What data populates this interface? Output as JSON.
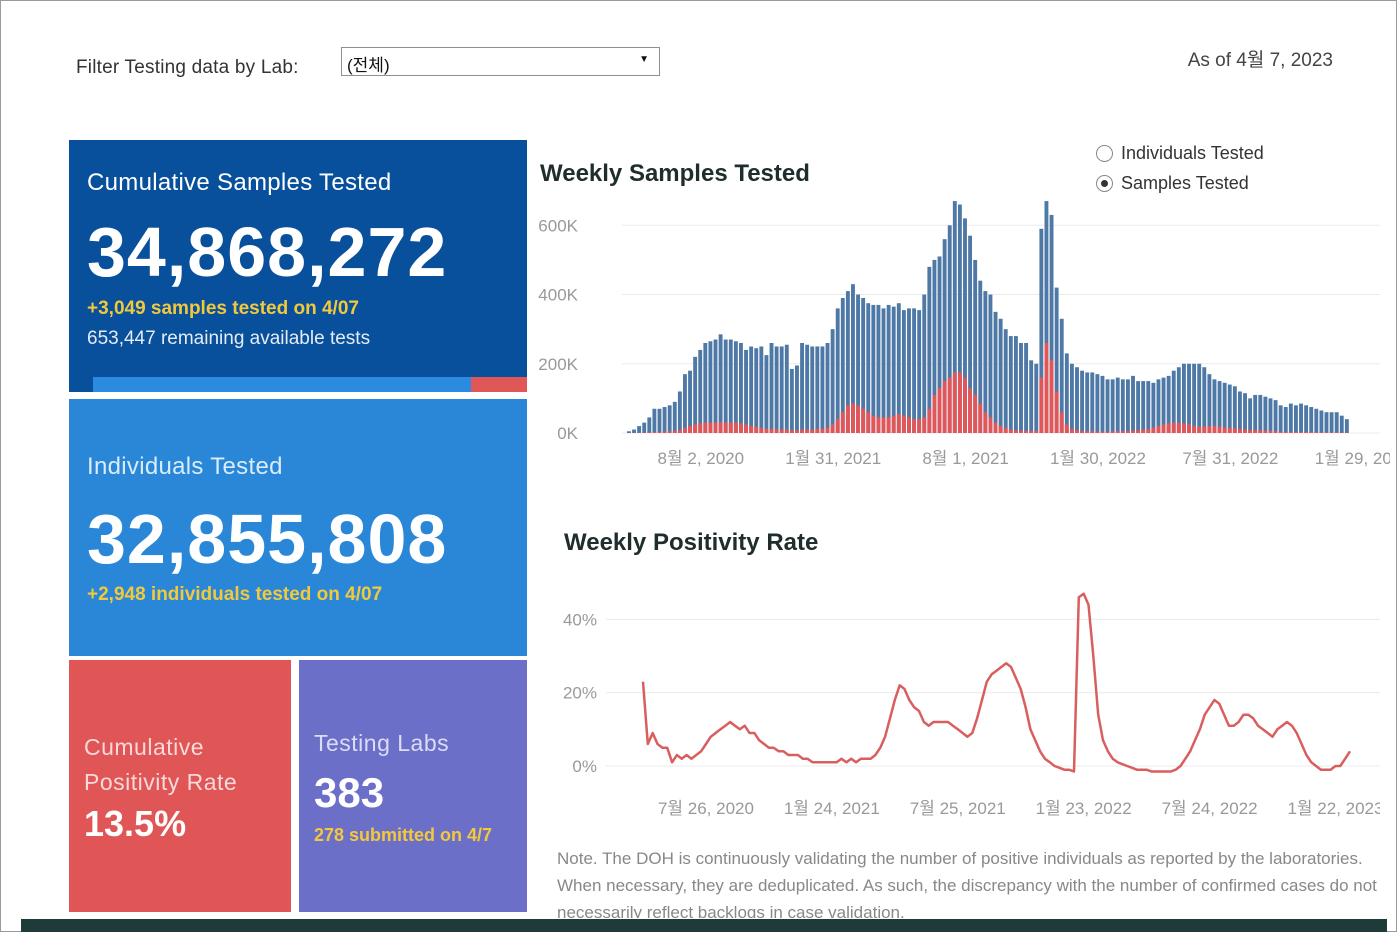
{
  "filter": {
    "label": "Filter Testing data by Lab:",
    "selected": "(전체)"
  },
  "as_of": "As of 4월 7, 2023",
  "tiles": {
    "cumulative_samples": {
      "title": "Cumulative Samples Tested",
      "value": "34,868,272",
      "delta": "+3,049 samples tested on 4/07",
      "remaining": "653,447 remaining available tests",
      "used_fraction": 0.87
    },
    "individuals": {
      "title": "Individuals Tested",
      "value": "32,855,808",
      "delta": "+2,948  individuals  tested on 4/07"
    },
    "positivity": {
      "title": "Cumulative Positivity Rate",
      "value": "13.5%"
    },
    "labs": {
      "title": "Testing Labs",
      "value": "383",
      "sub": "278 submitted on 4/7"
    }
  },
  "toggle": {
    "options": [
      "Individuals Tested",
      "Samples Tested"
    ],
    "selected": "Samples Tested"
  },
  "colors": {
    "dark_blue": "#08509b",
    "blue": "#2a87d8",
    "red": "#e05555",
    "purple": "#6b6fc7",
    "gold": "#f2c93c",
    "bar_blue": "#4e79a7",
    "bar_red": "#e15759",
    "line_red": "#d95f5f"
  },
  "chart_data": [
    {
      "type": "bar",
      "title": "Weekly Samples Tested",
      "y_ticks": [
        "0K",
        "200K",
        "400K",
        "600K"
      ],
      "ylim": [
        0,
        650000
      ],
      "x_ticks": [
        "8월 2, 2020",
        "1월 31, 2021",
        "8월 1, 2021",
        "1월 30, 2022",
        "7월 31, 2022",
        "1월 29, 2023"
      ],
      "x_tick_index": [
        14,
        40,
        66,
        92,
        118,
        144
      ],
      "series": [
        {
          "name": "Samples Tested",
          "values": [
            5000,
            10000,
            20000,
            30000,
            45000,
            70000,
            70000,
            75000,
            80000,
            90000,
            120000,
            170000,
            180000,
            220000,
            240000,
            260000,
            265000,
            270000,
            285000,
            270000,
            270000,
            265000,
            260000,
            240000,
            250000,
            245000,
            250000,
            225000,
            260000,
            250000,
            250000,
            255000,
            185000,
            195000,
            260000,
            255000,
            250000,
            250000,
            250000,
            260000,
            300000,
            360000,
            390000,
            410000,
            430000,
            400000,
            390000,
            375000,
            370000,
            370000,
            360000,
            370000,
            365000,
            375000,
            355000,
            360000,
            360000,
            355000,
            400000,
            480000,
            500000,
            510000,
            560000,
            600000,
            670000,
            660000,
            620000,
            570000,
            500000,
            440000,
            410000,
            400000,
            350000,
            330000,
            300000,
            280000,
            280000,
            260000,
            260000,
            210000,
            200000,
            590000,
            670000,
            630000,
            420000,
            330000,
            230000,
            200000,
            190000,
            180000,
            175000,
            175000,
            170000,
            165000,
            155000,
            155000,
            160000,
            155000,
            155000,
            165000,
            150000,
            150000,
            150000,
            145000,
            155000,
            160000,
            165000,
            180000,
            190000,
            200000,
            200000,
            200000,
            200000,
            190000,
            170000,
            155000,
            150000,
            145000,
            140000,
            135000,
            120000,
            115000,
            100000,
            110000,
            110000,
            105000,
            100000,
            95000,
            80000,
            75000,
            85000,
            80000,
            85000,
            80000,
            75000,
            70000,
            65000,
            60000,
            60000,
            60000,
            50000,
            40000
          ]
        },
        {
          "name": "Positive",
          "values": [
            0,
            500,
            1000,
            1500,
            2000,
            3000,
            3000,
            4000,
            5000,
            6000,
            8000,
            15000,
            20000,
            25000,
            28000,
            30000,
            30000,
            30000,
            31000,
            30000,
            30000,
            30000,
            28000,
            25000,
            20000,
            18000,
            15000,
            12000,
            12000,
            10000,
            10000,
            10000,
            8000,
            8000,
            10000,
            10000,
            10000,
            12000,
            12000,
            15000,
            25000,
            40000,
            60000,
            80000,
            85000,
            80000,
            70000,
            60000,
            50000,
            45000,
            45000,
            45000,
            50000,
            55000,
            50000,
            45000,
            40000,
            40000,
            45000,
            70000,
            110000,
            130000,
            150000,
            160000,
            175000,
            175000,
            160000,
            130000,
            110000,
            85000,
            60000,
            45000,
            30000,
            20000,
            15000,
            10000,
            8000,
            7000,
            6000,
            6000,
            6000,
            160000,
            260000,
            210000,
            120000,
            60000,
            25000,
            12000,
            8000,
            6000,
            5000,
            5000,
            4000,
            4000,
            4000,
            4000,
            5000,
            5000,
            6000,
            7000,
            8000,
            10000,
            12000,
            15000,
            20000,
            25000,
            28000,
            30000,
            30000,
            28000,
            25000,
            20000,
            18000,
            18000,
            20000,
            20000,
            18000,
            16000,
            15000,
            14000,
            12000,
            10000,
            9000,
            9000,
            8000,
            7000,
            6000,
            5000,
            4000,
            3000,
            3000,
            3000,
            3000,
            3000,
            3000,
            3000,
            2000,
            2000,
            2000,
            2000,
            1000,
            1000
          ]
        }
      ]
    },
    {
      "type": "line",
      "title": "Weekly Positivity Rate",
      "y_ticks": [
        "0%",
        "20%",
        "40%"
      ],
      "ylim": [
        0,
        48
      ],
      "x_ticks": [
        "7월 26, 2020",
        "1월 24, 2021",
        "7월 25, 2021",
        "1월 23, 2022",
        "7월 24, 2022",
        "1월 22, 2023"
      ],
      "x_tick_index": [
        13,
        39,
        65,
        91,
        117,
        143
      ],
      "series": [
        {
          "name": "Positivity Rate",
          "values": [
            23,
            6,
            9,
            6,
            5,
            5,
            1,
            3,
            2,
            3,
            2,
            3,
            4,
            6,
            8,
            9,
            10,
            11,
            12,
            11,
            10,
            11,
            9,
            9,
            7,
            6,
            5,
            5,
            4,
            4,
            3,
            3,
            3,
            2,
            2,
            1,
            1,
            1,
            1,
            1,
            1,
            2,
            1,
            2,
            1,
            2,
            2,
            2,
            3,
            5,
            8,
            13,
            18,
            22,
            21,
            18,
            16,
            15,
            12,
            11,
            12,
            12,
            12,
            12,
            11,
            10,
            9,
            8,
            9,
            13,
            18,
            23,
            25,
            26,
            27,
            28,
            27,
            24,
            21,
            16,
            10,
            7,
            4,
            2,
            1,
            0,
            -0.5,
            -1,
            -1,
            -1.5,
            46,
            47,
            44,
            30,
            14,
            7,
            4,
            2,
            1,
            0.5,
            0,
            -0.5,
            -1,
            -1,
            -1,
            -1.5,
            -1.5,
            -1.5,
            -1.5,
            -1.5,
            -1,
            0,
            2,
            4,
            7,
            10,
            14,
            16,
            18,
            17,
            14,
            11,
            11,
            12,
            14,
            14,
            13,
            11,
            10,
            9,
            8,
            10,
            11,
            12,
            11,
            9,
            6,
            3,
            1,
            0,
            -1,
            -1,
            -1,
            0,
            0,
            2,
            4
          ]
        }
      ]
    }
  ],
  "note": "Note. The DOH is continuously validating the number of positive individuals as reported by the laboratories. When necessary, they are deduplicated. As such, the discrepancy with the number of confirmed cases do not necessarily reflect backlogs in case validation."
}
